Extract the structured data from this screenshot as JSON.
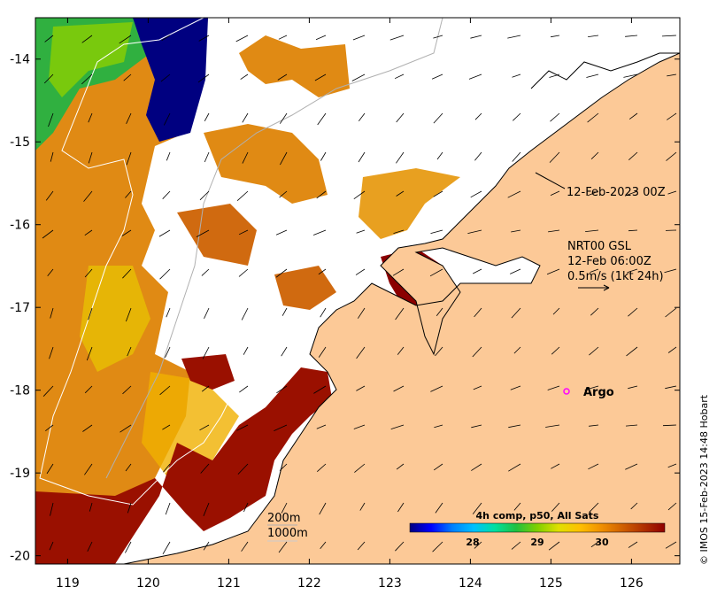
{
  "axes": {
    "x_ticks": [
      "119",
      "120",
      "121",
      "122",
      "123",
      "124",
      "125",
      "126"
    ],
    "y_ticks": [
      "-14",
      "-15",
      "-16",
      "-17",
      "-18",
      "-19",
      "-20"
    ],
    "lon_range": [
      118.6,
      126.6
    ],
    "lat_range": [
      -20.1,
      -13.5
    ]
  },
  "annotations": {
    "track_time": "12-Feb-2023 00Z",
    "product": "NRT00 GSL",
    "product_time": "12-Feb 06:00Z",
    "scale_arrow": "0.5m/s (1kt 24h)",
    "argo_label": "Argo",
    "isobath_200": "200m",
    "isobath_1000": "1000m",
    "credit": "© IMOS 15-Feb-2023 14:48 Hobart"
  },
  "colorbar": {
    "title": "4h comp, p50, All Sats",
    "ticks": [
      "28",
      "29",
      "30"
    ],
    "colors": [
      "#000080",
      "#0000ff",
      "#0080ff",
      "#00c0ff",
      "#00e0a0",
      "#20c040",
      "#80d000",
      "#e0e000",
      "#ffc000",
      "#f09000",
      "#d06000",
      "#b03000",
      "#900000"
    ]
  },
  "colors": {
    "land": "#fcc997",
    "frame": "#000000",
    "argo_marker": "#ff00ff",
    "warm_water": "#8b0000",
    "mid_water": "#e08010",
    "cool_water": "#20b040",
    "cold_water": "#00008b"
  }
}
